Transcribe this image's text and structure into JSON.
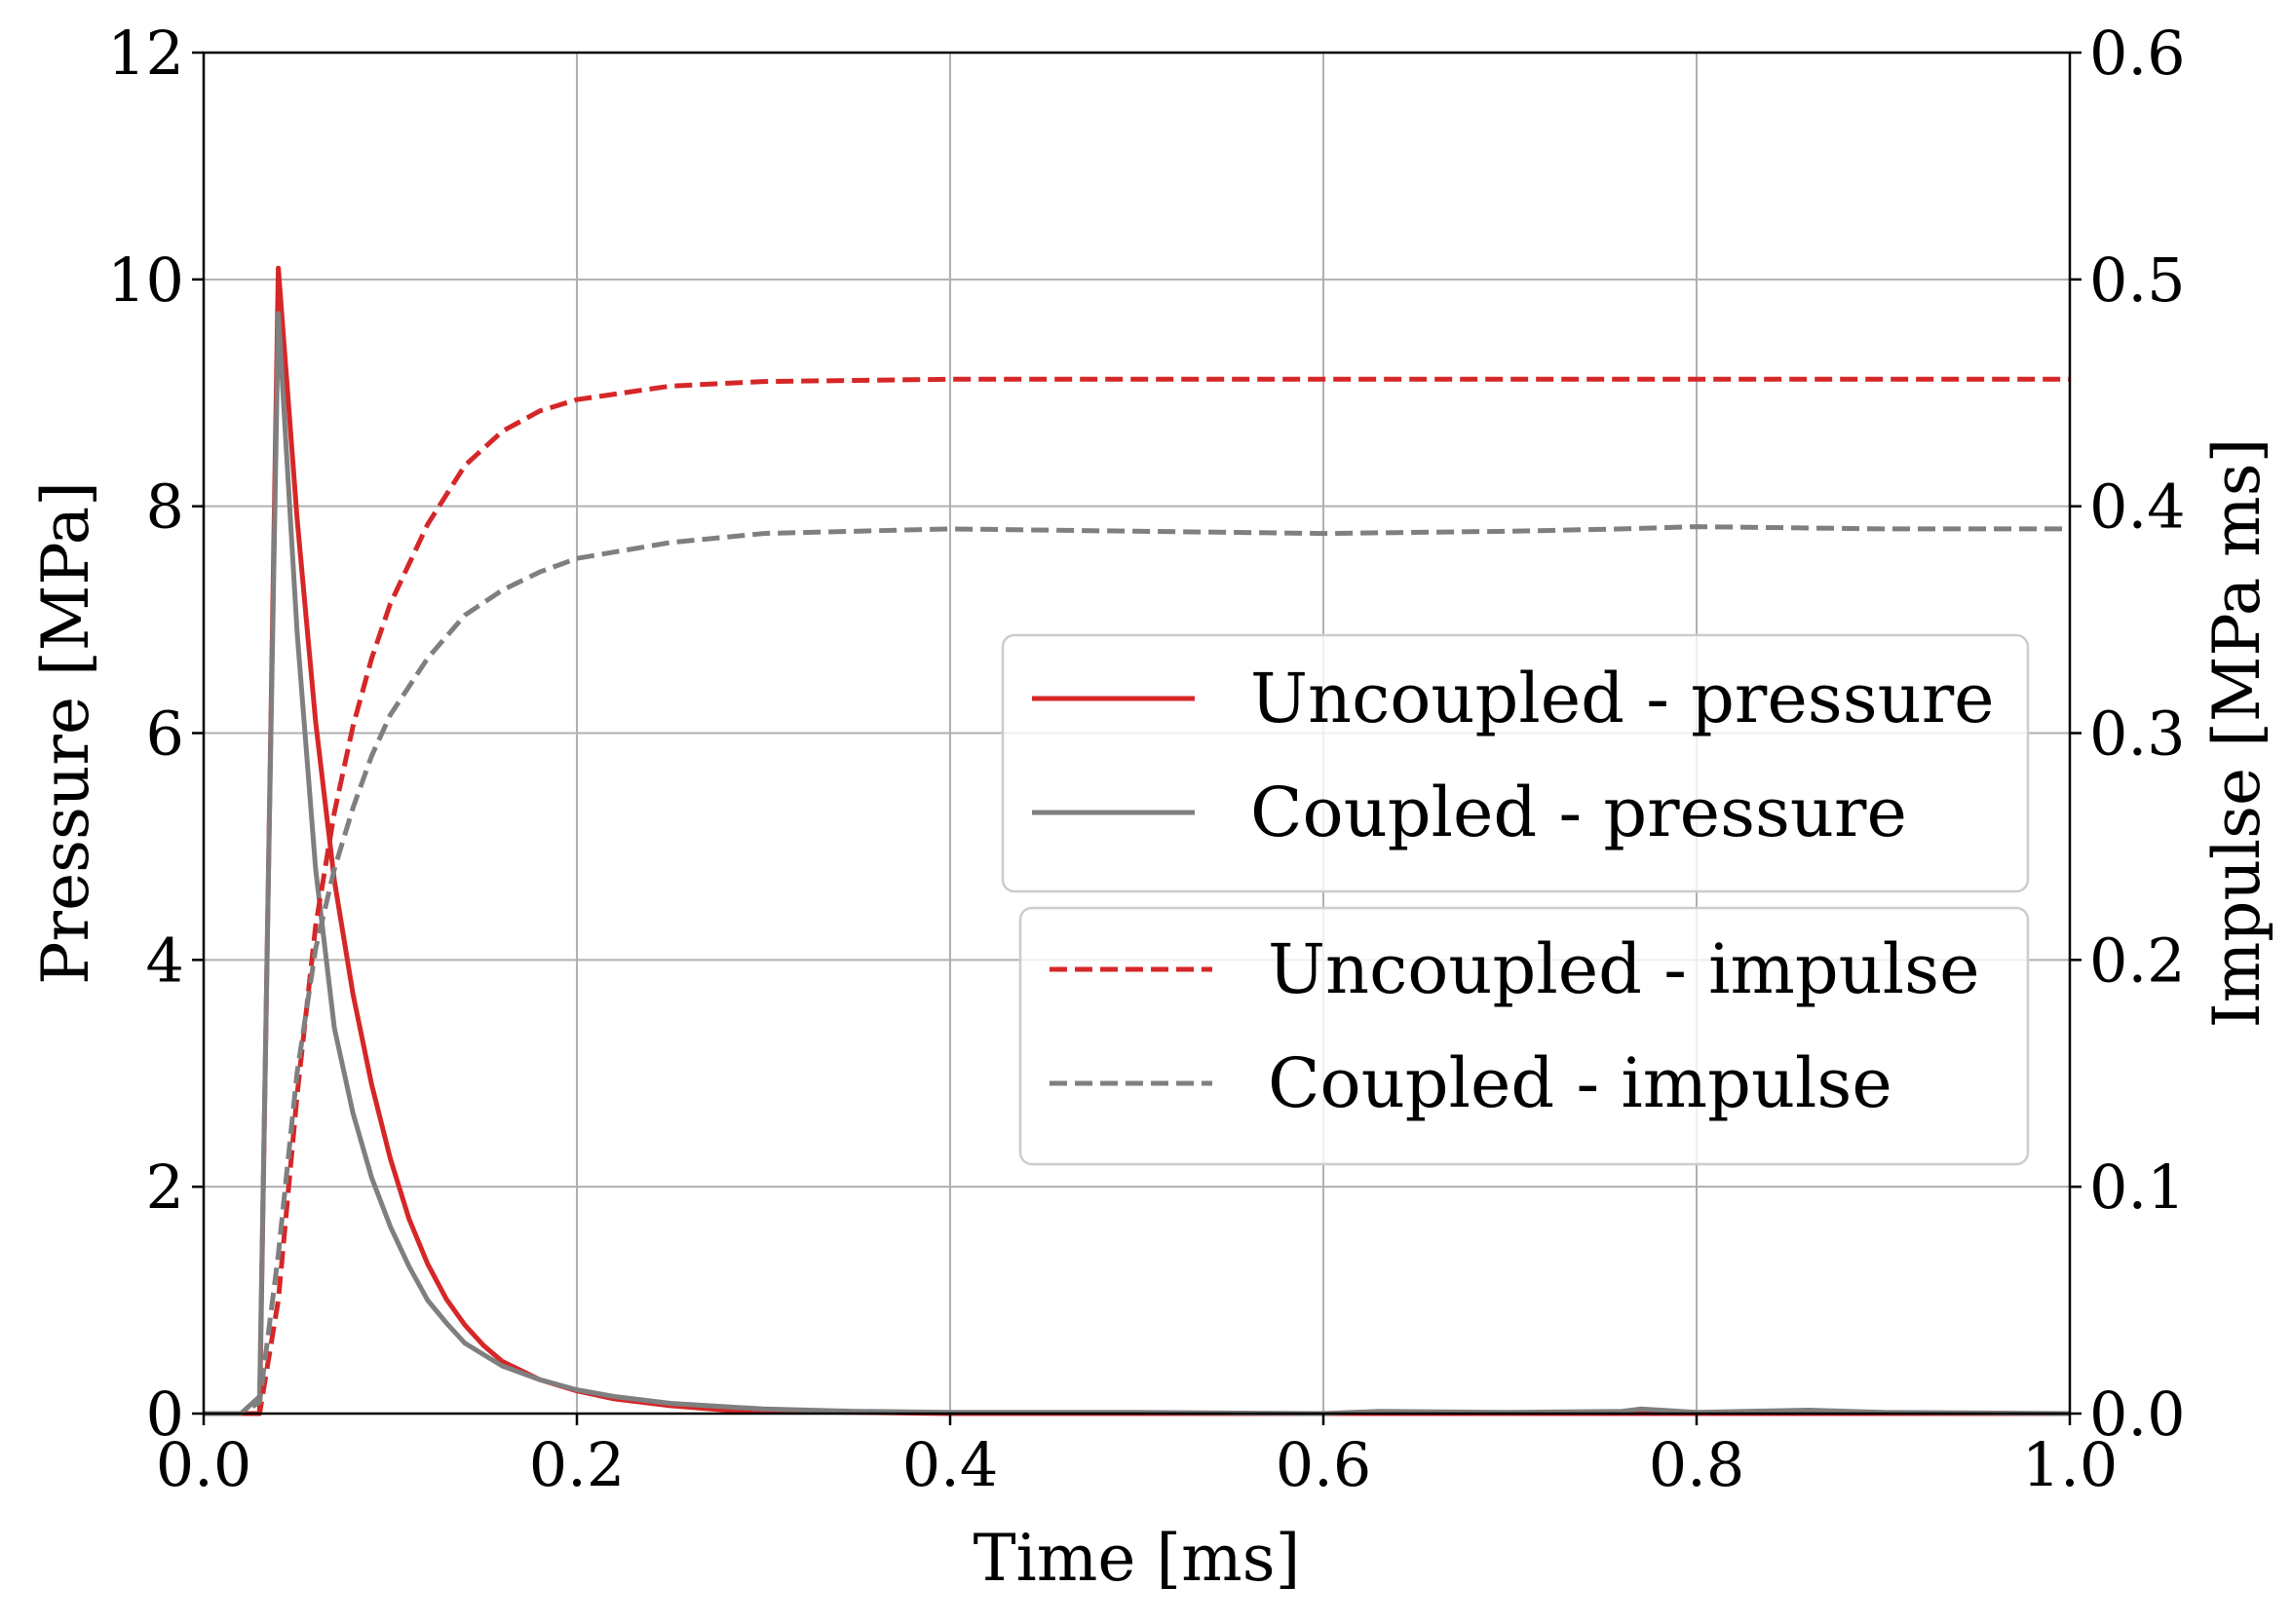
{
  "chart_data": {
    "type": "line",
    "title": "",
    "xlabel": "Time [ms]",
    "ylabel": "Pressure [MPa]",
    "y2label": "Impulse [MPa ms]",
    "xlim": [
      0.0,
      1.0
    ],
    "ylim": [
      0,
      12
    ],
    "y2lim": [
      0.0,
      0.6
    ],
    "grid": true,
    "xticks": [
      "0.0",
      "0.2",
      "0.4",
      "0.6",
      "0.8",
      "1.0"
    ],
    "yticks": [
      "0",
      "2",
      "4",
      "6",
      "8",
      "10",
      "12"
    ],
    "y2ticks": [
      "0.0",
      "0.1",
      "0.2",
      "0.3",
      "0.4",
      "0.5",
      "0.6"
    ],
    "legend_groups": [
      {
        "placement": "center-right",
        "entries": [
          {
            "label": "Uncoupled - pressure",
            "color": "#d62728",
            "style": "solid"
          },
          {
            "label": "Coupled - pressure",
            "color": "#7f7f7f",
            "style": "solid"
          }
        ]
      },
      {
        "placement": "center-right-lower",
        "entries": [
          {
            "label": "Uncoupled - impulse",
            "color": "#d62728",
            "style": "dashed"
          },
          {
            "label": "Coupled - impulse",
            "color": "#7f7f7f",
            "style": "dashed"
          }
        ]
      }
    ],
    "series": [
      {
        "name": "Uncoupled - pressure",
        "axis": "left",
        "color": "#d62728",
        "style": "solid",
        "x": [
          0.0,
          0.02,
          0.03,
          0.04,
          0.05,
          0.06,
          0.07,
          0.08,
          0.09,
          0.1,
          0.11,
          0.12,
          0.13,
          0.14,
          0.15,
          0.16,
          0.18,
          0.2,
          0.22,
          0.25,
          0.28,
          0.3,
          0.35,
          0.4,
          0.5,
          0.6,
          0.7,
          0.8,
          0.9,
          1.0
        ],
        "y": [
          0.0,
          0.0,
          0.0,
          10.1,
          7.9,
          6.1,
          4.7,
          3.7,
          2.9,
          2.25,
          1.72,
          1.32,
          1.01,
          0.78,
          0.6,
          0.46,
          0.3,
          0.2,
          0.13,
          0.07,
          0.03,
          0.02,
          0.01,
          0.0,
          0.0,
          0.0,
          0.0,
          0.0,
          0.0,
          0.0
        ]
      },
      {
        "name": "Coupled - pressure",
        "axis": "left",
        "color": "#7f7f7f",
        "style": "solid",
        "x": [
          0.0,
          0.02,
          0.03,
          0.035,
          0.04,
          0.05,
          0.06,
          0.07,
          0.08,
          0.09,
          0.1,
          0.11,
          0.12,
          0.13,
          0.14,
          0.15,
          0.16,
          0.18,
          0.2,
          0.22,
          0.25,
          0.28,
          0.3,
          0.35,
          0.4,
          0.5,
          0.6,
          0.63,
          0.7,
          0.76,
          0.77,
          0.8,
          0.86,
          0.9,
          1.0
        ],
        "y": [
          0.0,
          0.0,
          0.15,
          5.0,
          9.7,
          6.9,
          4.8,
          3.4,
          2.65,
          2.08,
          1.65,
          1.3,
          1.0,
          0.8,
          0.62,
          0.52,
          0.42,
          0.3,
          0.21,
          0.15,
          0.09,
          0.06,
          0.04,
          0.02,
          0.01,
          0.01,
          0.0,
          0.02,
          0.01,
          0.02,
          0.04,
          0.01,
          0.03,
          0.01,
          0.0
        ]
      },
      {
        "name": "Uncoupled - impulse",
        "axis": "right",
        "color": "#d62728",
        "style": "dashed",
        "x": [
          0.0,
          0.02,
          0.03,
          0.04,
          0.05,
          0.06,
          0.07,
          0.08,
          0.09,
          0.1,
          0.12,
          0.14,
          0.16,
          0.18,
          0.2,
          0.25,
          0.3,
          0.4,
          0.6,
          0.8,
          1.0
        ],
        "y": [
          0.0,
          0.0,
          0.0,
          0.05,
          0.14,
          0.215,
          0.265,
          0.303,
          0.333,
          0.357,
          0.392,
          0.418,
          0.433,
          0.442,
          0.447,
          0.453,
          0.455,
          0.456,
          0.456,
          0.456,
          0.456
        ]
      },
      {
        "name": "Coupled - impulse",
        "axis": "right",
        "color": "#7f7f7f",
        "style": "dashed",
        "x": [
          0.0,
          0.02,
          0.03,
          0.04,
          0.05,
          0.06,
          0.07,
          0.08,
          0.09,
          0.1,
          0.12,
          0.14,
          0.16,
          0.18,
          0.2,
          0.25,
          0.3,
          0.4,
          0.5,
          0.6,
          0.7,
          0.76,
          0.8,
          0.9,
          1.0
        ],
        "y": [
          0.0,
          0.0,
          0.005,
          0.07,
          0.15,
          0.205,
          0.24,
          0.267,
          0.29,
          0.308,
          0.333,
          0.352,
          0.363,
          0.371,
          0.377,
          0.384,
          0.388,
          0.39,
          0.389,
          0.388,
          0.389,
          0.39,
          0.391,
          0.39,
          0.39
        ]
      }
    ]
  }
}
